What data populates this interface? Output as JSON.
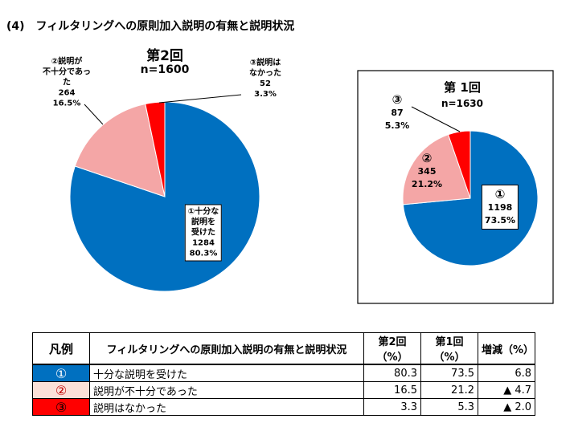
{
  "header": {
    "number": "(4)",
    "title": "フィルタリングへの原則加入説明の有無と説明状況"
  },
  "chart_data": [
    {
      "type": "pie",
      "title": "第2回",
      "subtitle": "n=1600",
      "categories": [
        "①十分な\n説明を\n受けた",
        "②説明が\n不十分であっ\nた",
        "③説明は\nなかった"
      ],
      "counts": [
        1284,
        264,
        52
      ],
      "values": [
        80.3,
        16.5,
        3.3
      ],
      "value_labels": [
        "80.3%",
        "16.5%",
        "3.3%"
      ],
      "colors": [
        "#0070c0",
        "#f4a6a6",
        "#ff0000"
      ]
    },
    {
      "type": "pie",
      "title": "第 1回",
      "subtitle": "n=1630",
      "categories": [
        "①",
        "②",
        "③"
      ],
      "counts": [
        1198,
        345,
        87
      ],
      "values": [
        73.5,
        21.2,
        5.3
      ],
      "value_labels": [
        "73.5%",
        "21.2%",
        "5.3%"
      ],
      "colors": [
        "#0070c0",
        "#f4a6a6",
        "#ff0000"
      ]
    }
  ],
  "table": {
    "header": [
      "凡例",
      "フィルタリングへの原則加入説明の有無と説明状況",
      "第2回（%）",
      "第1回（%）",
      "増減（%）"
    ],
    "rows": [
      [
        "①",
        "十分な説明を受けた",
        "80.3",
        "73.5",
        "6.8"
      ],
      [
        "②",
        "説明が不十分であった",
        "16.5",
        "21.2",
        "▲ 4.7"
      ],
      [
        "③",
        "説明はなかった",
        "3.3",
        "5.3",
        "▲ 2.0"
      ]
    ]
  }
}
